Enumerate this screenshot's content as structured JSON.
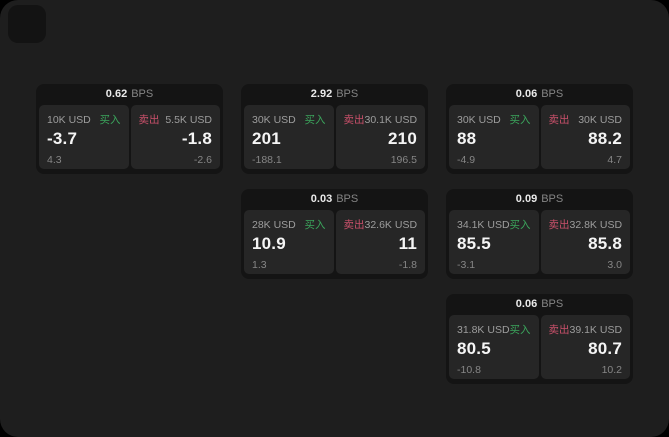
{
  "labels": {
    "bps_suffix": "BPS",
    "buy": "买入",
    "sell": "卖出"
  },
  "colors": {
    "buy": "#3ba55c",
    "sell": "#c9506a",
    "page_bg": "#1e1e1e",
    "card_bg": "#141414",
    "panel_bg": "#262626"
  },
  "cards": [
    {
      "col": 1,
      "row": 1,
      "bps": "0.62",
      "buy": {
        "size": "10K USD",
        "value": "-3.7",
        "delta": "4.3"
      },
      "sell": {
        "size": "5.5K USD",
        "value": "-1.8",
        "delta": "-2.6"
      }
    },
    {
      "col": 2,
      "row": 1,
      "bps": "2.92",
      "buy": {
        "size": "30K USD",
        "value": "201",
        "delta": "-188.1"
      },
      "sell": {
        "size": "30.1K USD",
        "value": "210",
        "delta": "196.5"
      }
    },
    {
      "col": 3,
      "row": 1,
      "bps": "0.06",
      "buy": {
        "size": "30K USD",
        "value": "88",
        "delta": "-4.9"
      },
      "sell": {
        "size": "30K USD",
        "value": "88.2",
        "delta": "4.7"
      }
    },
    {
      "col": 2,
      "row": 2,
      "bps": "0.03",
      "buy": {
        "size": "28K USD",
        "value": "10.9",
        "delta": "1.3"
      },
      "sell": {
        "size": "32.6K USD",
        "value": "11",
        "delta": "-1.8"
      }
    },
    {
      "col": 3,
      "row": 2,
      "bps": "0.09",
      "buy": {
        "size": "34.1K USD",
        "value": "85.5",
        "delta": "-3.1"
      },
      "sell": {
        "size": "32.8K USD",
        "value": "85.8",
        "delta": "3.0"
      }
    },
    {
      "col": 3,
      "row": 3,
      "bps": "0.06",
      "buy": {
        "size": "31.8K USD",
        "value": "80.5",
        "delta": "-10.8"
      },
      "sell": {
        "size": "39.1K USD",
        "value": "80.7",
        "delta": "10.2"
      }
    }
  ]
}
